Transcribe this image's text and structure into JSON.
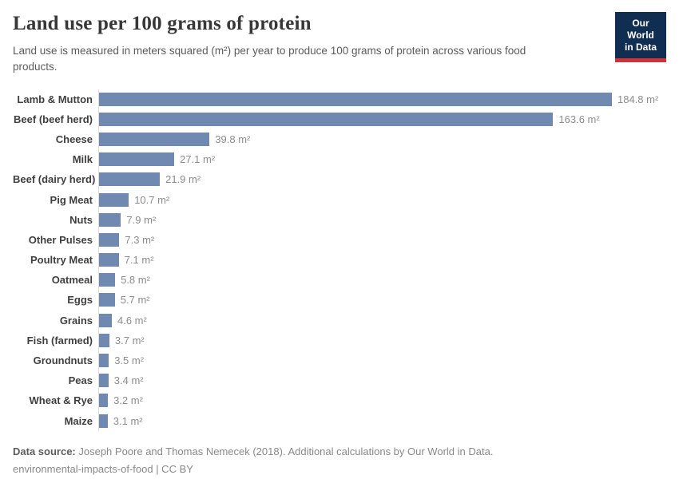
{
  "header": {
    "title": "Land use per 100 grams of protein",
    "subtitle": "Land use is measured in meters squared (m²) per year to produce 100 grams of protein across various food products.",
    "logo": {
      "line1": "Our World",
      "line2": "in Data"
    }
  },
  "chart_data": {
    "type": "bar",
    "orientation": "horizontal",
    "title": "Land use per 100 grams of protein",
    "xlabel": "",
    "ylabel": "",
    "unit": "m²",
    "xlim": [
      0,
      184.8
    ],
    "grid": false,
    "legend": "none",
    "categories": [
      "Lamb & Mutton",
      "Beef (beef herd)",
      "Cheese",
      "Milk",
      "Beef (dairy herd)",
      "Pig Meat",
      "Nuts",
      "Other Pulses",
      "Poultry Meat",
      "Oatmeal",
      "Eggs",
      "Grains",
      "Fish (farmed)",
      "Groundnuts",
      "Peas",
      "Wheat & Rye",
      "Maize"
    ],
    "values": [
      184.8,
      163.6,
      39.8,
      27.1,
      21.9,
      10.7,
      7.9,
      7.3,
      7.1,
      5.8,
      5.7,
      4.6,
      3.7,
      3.5,
      3.4,
      3.2,
      3.1
    ],
    "value_labels": [
      "184.8 m²",
      "163.6 m²",
      "39.8 m²",
      "27.1 m²",
      "21.9 m²",
      "10.7 m²",
      "7.9 m²",
      "7.3 m²",
      "7.1 m²",
      "5.8 m²",
      "5.7 m²",
      "4.6 m²",
      "3.7 m²",
      "3.5 m²",
      "3.4 m²",
      "3.2 m²",
      "3.1 m²"
    ],
    "bar_color": "#7089b1",
    "axis_color": "#dcdcdc"
  },
  "footer": {
    "datasource_label": "Data source:",
    "datasource_text": " Joseph Poore and Thomas Nemecek (2018). Additional calculations by Our World in Data.",
    "license_line": "environmental-impacts-of-food | CC BY"
  }
}
